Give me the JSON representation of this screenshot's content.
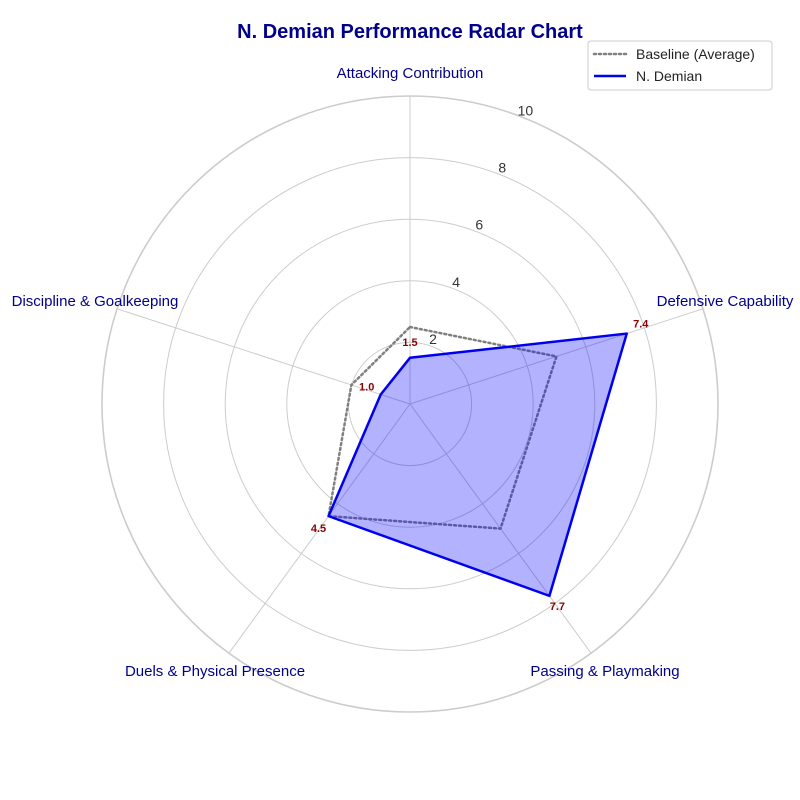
{
  "chart_data": {
    "type": "radar",
    "title": "N. Demian Performance Radar Chart",
    "categories": [
      "Attacking Contribution",
      "Defensive Capability",
      "Passing & Playmaking",
      "Duels & Physical Presence",
      "Discipline & Goalkeeping"
    ],
    "rlim": [
      0,
      10
    ],
    "rticks": [
      2,
      4,
      6,
      8,
      10
    ],
    "series": [
      {
        "name": "Baseline (Average)",
        "values": [
          2.5,
          5.0,
          5.0,
          4.5,
          2.0
        ],
        "style": "dotted",
        "color": "#808080",
        "filled": false
      },
      {
        "name": "N. Demian",
        "values": [
          1.5,
          7.4,
          7.7,
          4.5,
          1.0
        ],
        "style": "solid",
        "color": "#0000ee",
        "fill": "#0000ff",
        "filled": true,
        "value_labels": [
          "1.5",
          "7.4",
          "7.7",
          "4.5",
          "1.0"
        ]
      }
    ],
    "grid": true,
    "legend_position": "top-right"
  },
  "colors": {
    "title": "#00008b",
    "axis_label": "#00008b",
    "value_label": "#8b0000",
    "grid": "#cccccc"
  }
}
